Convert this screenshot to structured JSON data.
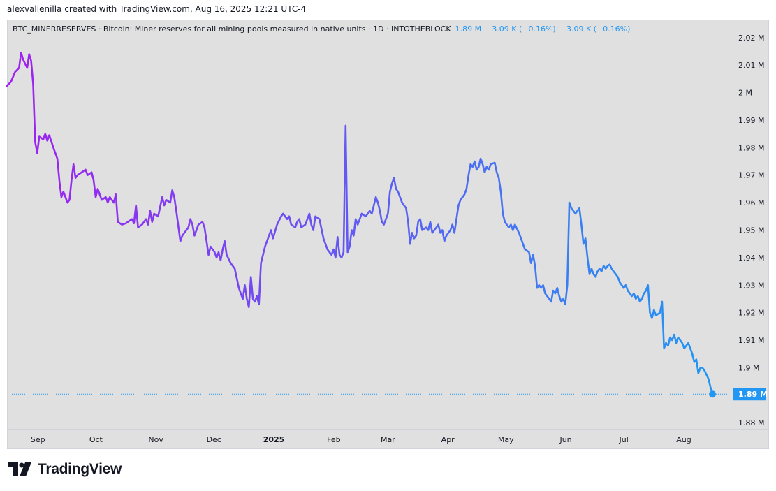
{
  "header": {
    "creator_line": "alexvallenilla created with TradingView.com, Aug 16, 2025 12:21 UTC-4"
  },
  "legend": {
    "symbol_line": "BTC_MINERRESERVES · Bitcoin: Miner reserves for all mining pools measured in native units · 1D · INTOTHEBLOCK",
    "last_value": "1.89 M",
    "change_1": "−3.09 K (−0.16%)",
    "change_2": "−3.09 K (−0.16%)",
    "value_color": "#2196f3"
  },
  "brand": {
    "name": "TradingView"
  },
  "chart_data": {
    "type": "line",
    "series_gradient": [
      "#a020f0",
      "#2196f3"
    ],
    "y_ticks": [
      {
        "value": 1.88,
        "label": "1.88 M"
      },
      {
        "value": 1.89,
        "label": "1.89 M"
      },
      {
        "value": 1.9,
        "label": "1.9 M"
      },
      {
        "value": 1.91,
        "label": "1.91 M"
      },
      {
        "value": 1.92,
        "label": "1.92 M"
      },
      {
        "value": 1.93,
        "label": "1.93 M"
      },
      {
        "value": 1.94,
        "label": "1.94 M"
      },
      {
        "value": 1.95,
        "label": "1.95 M"
      },
      {
        "value": 1.96,
        "label": "1.96 M"
      },
      {
        "value": 1.97,
        "label": "1.97 M"
      },
      {
        "value": 1.98,
        "label": "1.98 M"
      },
      {
        "value": 1.99,
        "label": "1.99 M"
      },
      {
        "value": 2.0,
        "label": "2 M"
      },
      {
        "value": 2.01,
        "label": "2.01 M"
      },
      {
        "value": 2.02,
        "label": "2.02 M"
      }
    ],
    "ylim": [
      1.8775,
      2.0225
    ],
    "xlim": [
      "2024-08-16",
      "2025-08-31"
    ],
    "x_ticks": [
      {
        "date": "2024-09-01",
        "label": "Sep",
        "bold": false
      },
      {
        "date": "2024-10-01",
        "label": "Oct",
        "bold": false
      },
      {
        "date": "2024-11-01",
        "label": "Nov",
        "bold": false
      },
      {
        "date": "2024-12-01",
        "label": "Dec",
        "bold": false
      },
      {
        "date": "2025-01-01",
        "label": "2025",
        "bold": true
      },
      {
        "date": "2025-02-01",
        "label": "Feb",
        "bold": false
      },
      {
        "date": "2025-03-01",
        "label": "Mar",
        "bold": false
      },
      {
        "date": "2025-04-01",
        "label": "Apr",
        "bold": false
      },
      {
        "date": "2025-05-01",
        "label": "May",
        "bold": false
      },
      {
        "date": "2025-06-01",
        "label": "Jun",
        "bold": false
      },
      {
        "date": "2025-07-01",
        "label": "Jul",
        "bold": false
      },
      {
        "date": "2025-08-01",
        "label": "Aug",
        "bold": false
      }
    ],
    "last_point": {
      "date": "2025-08-15",
      "value": 1.8904,
      "label": "1.89 M"
    },
    "points": [
      [
        "2024-08-16",
        2.0025
      ],
      [
        "2024-08-18",
        2.004
      ],
      [
        "2024-08-20",
        2.0075
      ],
      [
        "2024-08-22",
        2.009
      ],
      [
        "2024-08-23",
        2.0145
      ],
      [
        "2024-08-24",
        2.012
      ],
      [
        "2024-08-26",
        2.009
      ],
      [
        "2024-08-27",
        2.014
      ],
      [
        "2024-08-28",
        2.0115
      ],
      [
        "2024-08-29",
        2.003
      ],
      [
        "2024-08-30",
        1.982
      ],
      [
        "2024-08-31",
        1.978
      ],
      [
        "2024-09-01",
        1.984
      ],
      [
        "2024-09-03",
        1.983
      ],
      [
        "2024-09-04",
        1.985
      ],
      [
        "2024-09-05",
        1.9825
      ],
      [
        "2024-09-06",
        1.9845
      ],
      [
        "2024-09-08",
        1.98
      ],
      [
        "2024-09-10",
        1.976
      ],
      [
        "2024-09-11",
        1.968
      ],
      [
        "2024-09-12",
        1.962
      ],
      [
        "2024-09-13",
        1.964
      ],
      [
        "2024-09-15",
        1.96
      ],
      [
        "2024-09-16",
        1.961
      ],
      [
        "2024-09-17",
        1.968
      ],
      [
        "2024-09-18",
        1.974
      ],
      [
        "2024-09-19",
        1.969
      ],
      [
        "2024-09-20",
        1.97
      ],
      [
        "2024-09-22",
        1.971
      ],
      [
        "2024-09-24",
        1.972
      ],
      [
        "2024-09-25",
        1.97
      ],
      [
        "2024-09-27",
        1.971
      ],
      [
        "2024-09-28",
        1.968
      ],
      [
        "2024-09-29",
        1.962
      ],
      [
        "2024-09-30",
        1.965
      ],
      [
        "2024-10-02",
        1.961
      ],
      [
        "2024-10-04",
        1.962
      ],
      [
        "2024-10-05",
        1.96
      ],
      [
        "2024-10-06",
        1.962
      ],
      [
        "2024-10-08",
        1.96
      ],
      [
        "2024-10-09",
        1.963
      ],
      [
        "2024-10-10",
        1.953
      ],
      [
        "2024-10-12",
        1.952
      ],
      [
        "2024-10-14",
        1.9525
      ],
      [
        "2024-10-15",
        1.953
      ],
      [
        "2024-10-17",
        1.954
      ],
      [
        "2024-10-18",
        1.9525
      ],
      [
        "2024-10-19",
        1.959
      ],
      [
        "2024-10-20",
        1.951
      ],
      [
        "2024-10-22",
        1.952
      ],
      [
        "2024-10-24",
        1.954
      ],
      [
        "2024-10-25",
        1.952
      ],
      [
        "2024-10-26",
        1.957
      ],
      [
        "2024-10-27",
        1.953
      ],
      [
        "2024-10-28",
        1.956
      ],
      [
        "2024-10-30",
        1.955
      ],
      [
        "2024-11-01",
        1.962
      ],
      [
        "2024-11-02",
        1.959
      ],
      [
        "2024-11-03",
        1.961
      ],
      [
        "2024-11-05",
        1.96
      ],
      [
        "2024-11-06",
        1.9645
      ],
      [
        "2024-11-07",
        1.962
      ],
      [
        "2024-11-08",
        1.957
      ],
      [
        "2024-11-10",
        1.946
      ],
      [
        "2024-11-11",
        1.948
      ],
      [
        "2024-11-13",
        1.95
      ],
      [
        "2024-11-14",
        1.951
      ],
      [
        "2024-11-15",
        1.954
      ],
      [
        "2024-11-16",
        1.952
      ],
      [
        "2024-11-17",
        1.948
      ],
      [
        "2024-11-19",
        1.952
      ],
      [
        "2024-11-21",
        1.953
      ],
      [
        "2024-11-22",
        1.951
      ],
      [
        "2024-11-23",
        1.946
      ],
      [
        "2024-11-24",
        1.941
      ],
      [
        "2024-11-25",
        1.944
      ],
      [
        "2024-11-27",
        1.942
      ],
      [
        "2024-11-28",
        1.94
      ],
      [
        "2024-11-29",
        1.942
      ],
      [
        "2024-11-30",
        1.939
      ],
      [
        "2024-12-01",
        1.943
      ],
      [
        "2024-12-02",
        1.946
      ],
      [
        "2024-12-03",
        1.941
      ],
      [
        "2024-12-05",
        1.938
      ],
      [
        "2024-12-07",
        1.936
      ],
      [
        "2024-12-09",
        1.929
      ],
      [
        "2024-12-11",
        1.925
      ],
      [
        "2024-12-12",
        1.93
      ],
      [
        "2024-12-13",
        1.925
      ],
      [
        "2024-12-14",
        1.922
      ],
      [
        "2024-12-15",
        1.933
      ],
      [
        "2024-12-16",
        1.925
      ],
      [
        "2024-12-17",
        1.924
      ],
      [
        "2024-12-18",
        1.926
      ],
      [
        "2024-12-19",
        1.923
      ],
      [
        "2024-12-20",
        1.938
      ],
      [
        "2024-12-22",
        1.944
      ],
      [
        "2024-12-24",
        1.948
      ],
      [
        "2024-12-25",
        1.95
      ],
      [
        "2024-12-26",
        1.947
      ],
      [
        "2024-12-28",
        1.952
      ],
      [
        "2024-12-30",
        1.955
      ],
      [
        "2024-12-31",
        1.956
      ],
      [
        "2025-01-02",
        1.954
      ],
      [
        "2025-01-03",
        1.955
      ],
      [
        "2025-01-04",
        1.952
      ],
      [
        "2025-01-06",
        1.951
      ],
      [
        "2025-01-07",
        1.953
      ],
      [
        "2025-01-08",
        1.954
      ],
      [
        "2025-01-09",
        1.951
      ],
      [
        "2025-01-11",
        1.952
      ],
      [
        "2025-01-12",
        1.954
      ],
      [
        "2025-01-13",
        1.956
      ],
      [
        "2025-01-14",
        1.952
      ],
      [
        "2025-01-15",
        1.95
      ],
      [
        "2025-01-16",
        1.955
      ],
      [
        "2025-01-18",
        1.954
      ],
      [
        "2025-01-20",
        1.947
      ],
      [
        "2025-01-22",
        1.943
      ],
      [
        "2025-01-24",
        1.941
      ],
      [
        "2025-01-25",
        1.943
      ],
      [
        "2025-01-26",
        1.94
      ],
      [
        "2025-01-27",
        1.9475
      ],
      [
        "2025-01-28",
        1.941
      ],
      [
        "2025-01-29",
        1.94
      ],
      [
        "2025-01-30",
        1.942
      ],
      [
        "2025-01-31",
        1.988
      ],
      [
        "2025-02-01",
        1.942
      ],
      [
        "2025-02-02",
        1.944
      ],
      [
        "2025-02-03",
        1.95
      ],
      [
        "2025-02-04",
        1.948
      ],
      [
        "2025-02-05",
        1.954
      ],
      [
        "2025-02-06",
        1.952
      ],
      [
        "2025-02-08",
        1.956
      ],
      [
        "2025-02-10",
        1.955
      ],
      [
        "2025-02-12",
        1.957
      ],
      [
        "2025-02-13",
        1.956
      ],
      [
        "2025-02-14",
        1.959
      ],
      [
        "2025-02-15",
        1.962
      ],
      [
        "2025-02-16",
        1.96
      ],
      [
        "2025-02-17",
        1.957
      ],
      [
        "2025-02-18",
        1.953
      ],
      [
        "2025-02-19",
        1.952
      ],
      [
        "2025-02-20",
        1.954
      ],
      [
        "2025-02-21",
        1.956
      ],
      [
        "2025-02-22",
        1.964
      ],
      [
        "2025-02-23",
        1.967
      ],
      [
        "2025-02-24",
        1.969
      ],
      [
        "2025-02-25",
        1.965
      ],
      [
        "2025-02-26",
        1.964
      ],
      [
        "2025-02-27",
        1.962
      ],
      [
        "2025-02-28",
        1.96
      ],
      [
        "2025-03-02",
        1.958
      ],
      [
        "2025-03-03",
        1.953
      ],
      [
        "2025-03-04",
        1.945
      ],
      [
        "2025-03-05",
        1.949
      ],
      [
        "2025-03-06",
        1.947
      ],
      [
        "2025-03-07",
        1.948
      ],
      [
        "2025-03-08",
        1.953
      ],
      [
        "2025-03-09",
        1.954
      ],
      [
        "2025-03-10",
        1.95
      ],
      [
        "2025-03-12",
        1.951
      ],
      [
        "2025-03-13",
        1.95
      ],
      [
        "2025-03-14",
        1.953
      ],
      [
        "2025-03-15",
        1.949
      ],
      [
        "2025-03-17",
        1.951
      ],
      [
        "2025-03-18",
        1.952
      ],
      [
        "2025-03-19",
        1.949
      ],
      [
        "2025-03-20",
        1.95
      ],
      [
        "2025-03-21",
        1.946
      ],
      [
        "2025-03-22",
        1.948
      ],
      [
        "2025-03-24",
        1.95
      ],
      [
        "2025-03-25",
        1.952
      ],
      [
        "2025-03-26",
        1.949
      ],
      [
        "2025-03-27",
        1.954
      ],
      [
        "2025-03-28",
        1.959
      ],
      [
        "2025-03-29",
        1.961
      ],
      [
        "2025-03-30",
        1.962
      ],
      [
        "2025-03-31",
        1.963
      ],
      [
        "2025-04-01",
        1.965
      ],
      [
        "2025-04-02",
        1.97
      ],
      [
        "2025-04-03",
        1.974
      ],
      [
        "2025-04-04",
        1.973
      ],
      [
        "2025-04-05",
        1.975
      ],
      [
        "2025-04-06",
        1.972
      ],
      [
        "2025-04-07",
        1.973
      ],
      [
        "2025-04-08",
        1.976
      ],
      [
        "2025-04-09",
        1.974
      ],
      [
        "2025-04-10",
        1.971
      ],
      [
        "2025-04-11",
        1.973
      ],
      [
        "2025-04-12",
        1.972
      ],
      [
        "2025-04-13",
        1.974
      ],
      [
        "2025-04-15",
        1.9745
      ],
      [
        "2025-04-16",
        1.971
      ],
      [
        "2025-04-17",
        1.969
      ],
      [
        "2025-04-18",
        1.964
      ],
      [
        "2025-04-19",
        1.956
      ],
      [
        "2025-04-20",
        1.953
      ],
      [
        "2025-04-22",
        1.951
      ],
      [
        "2025-04-23",
        1.952
      ],
      [
        "2025-04-24",
        1.95
      ],
      [
        "2025-04-25",
        1.952
      ],
      [
        "2025-04-27",
        1.949
      ],
      [
        "2025-04-28",
        1.947
      ],
      [
        "2025-04-29",
        1.945
      ],
      [
        "2025-04-30",
        1.943
      ],
      [
        "2025-05-02",
        1.942
      ],
      [
        "2025-05-03",
        1.938
      ],
      [
        "2025-05-04",
        1.941
      ],
      [
        "2025-05-05",
        1.937
      ],
      [
        "2025-05-06",
        1.929
      ],
      [
        "2025-05-07",
        1.93
      ],
      [
        "2025-05-08",
        1.929
      ],
      [
        "2025-05-09",
        1.93
      ],
      [
        "2025-05-10",
        1.927
      ],
      [
        "2025-05-12",
        1.925
      ],
      [
        "2025-05-13",
        1.924
      ],
      [
        "2025-05-14",
        1.928
      ],
      [
        "2025-05-15",
        1.927
      ],
      [
        "2025-05-16",
        1.929
      ],
      [
        "2025-05-17",
        1.926
      ],
      [
        "2025-05-18",
        1.924
      ],
      [
        "2025-05-19",
        1.925
      ],
      [
        "2025-05-20",
        1.923
      ],
      [
        "2025-05-21",
        1.93
      ],
      [
        "2025-05-22",
        1.96
      ],
      [
        "2025-05-23",
        1.958
      ],
      [
        "2025-05-24",
        1.957
      ],
      [
        "2025-05-25",
        1.956
      ],
      [
        "2025-05-26",
        1.957
      ],
      [
        "2025-05-27",
        1.958
      ],
      [
        "2025-05-28",
        1.952
      ],
      [
        "2025-05-29",
        1.945
      ],
      [
        "2025-05-30",
        1.947
      ],
      [
        "2025-05-31",
        1.94
      ],
      [
        "2025-06-01",
        1.934
      ],
      [
        "2025-06-02",
        1.936
      ],
      [
        "2025-06-03",
        1.934
      ],
      [
        "2025-06-04",
        1.933
      ],
      [
        "2025-06-05",
        1.935
      ],
      [
        "2025-06-06",
        1.936
      ],
      [
        "2025-06-07",
        1.935
      ],
      [
        "2025-06-08",
        1.937
      ],
      [
        "2025-06-09",
        1.936
      ],
      [
        "2025-06-10",
        1.937
      ],
      [
        "2025-06-11",
        1.9375
      ],
      [
        "2025-06-12",
        1.936
      ],
      [
        "2025-06-13",
        1.935
      ],
      [
        "2025-06-15",
        1.933
      ],
      [
        "2025-06-16",
        1.931
      ],
      [
        "2025-06-17",
        1.93
      ],
      [
        "2025-06-18",
        1.929
      ],
      [
        "2025-06-19",
        1.93
      ],
      [
        "2025-06-20",
        1.928
      ],
      [
        "2025-06-22",
        1.926
      ],
      [
        "2025-06-23",
        1.927
      ],
      [
        "2025-06-24",
        1.925
      ],
      [
        "2025-06-25",
        1.926
      ],
      [
        "2025-06-26",
        1.924
      ],
      [
        "2025-06-27",
        1.925
      ],
      [
        "2025-06-28",
        1.927
      ],
      [
        "2025-06-29",
        1.928
      ],
      [
        "2025-06-30",
        1.93
      ],
      [
        "2025-07-01",
        1.92
      ],
      [
        "2025-07-02",
        1.918
      ],
      [
        "2025-07-03",
        1.921
      ],
      [
        "2025-07-04",
        1.919
      ],
      [
        "2025-07-06",
        1.92
      ],
      [
        "2025-07-07",
        1.924
      ],
      [
        "2025-07-08",
        1.907
      ],
      [
        "2025-07-09",
        1.909
      ],
      [
        "2025-07-10",
        1.908
      ],
      [
        "2025-07-11",
        1.911
      ],
      [
        "2025-07-12",
        1.91
      ],
      [
        "2025-07-13",
        1.912
      ],
      [
        "2025-07-14",
        1.909
      ],
      [
        "2025-07-15",
        1.911
      ],
      [
        "2025-07-16",
        1.91
      ],
      [
        "2025-07-17",
        1.909
      ],
      [
        "2025-07-18",
        1.907
      ],
      [
        "2025-07-19",
        1.908
      ],
      [
        "2025-07-20",
        1.909
      ],
      [
        "2025-07-21",
        1.907
      ],
      [
        "2025-07-22",
        1.905
      ],
      [
        "2025-07-23",
        1.902
      ],
      [
        "2025-07-24",
        1.903
      ],
      [
        "2025-07-25",
        1.898
      ],
      [
        "2025-07-26",
        1.9
      ],
      [
        "2025-07-27",
        1.9
      ],
      [
        "2025-07-28",
        1.899
      ],
      [
        "2025-07-30",
        1.896
      ],
      [
        "2025-07-31",
        1.893
      ],
      [
        "2025-08-01",
        1.8904
      ]
    ]
  }
}
